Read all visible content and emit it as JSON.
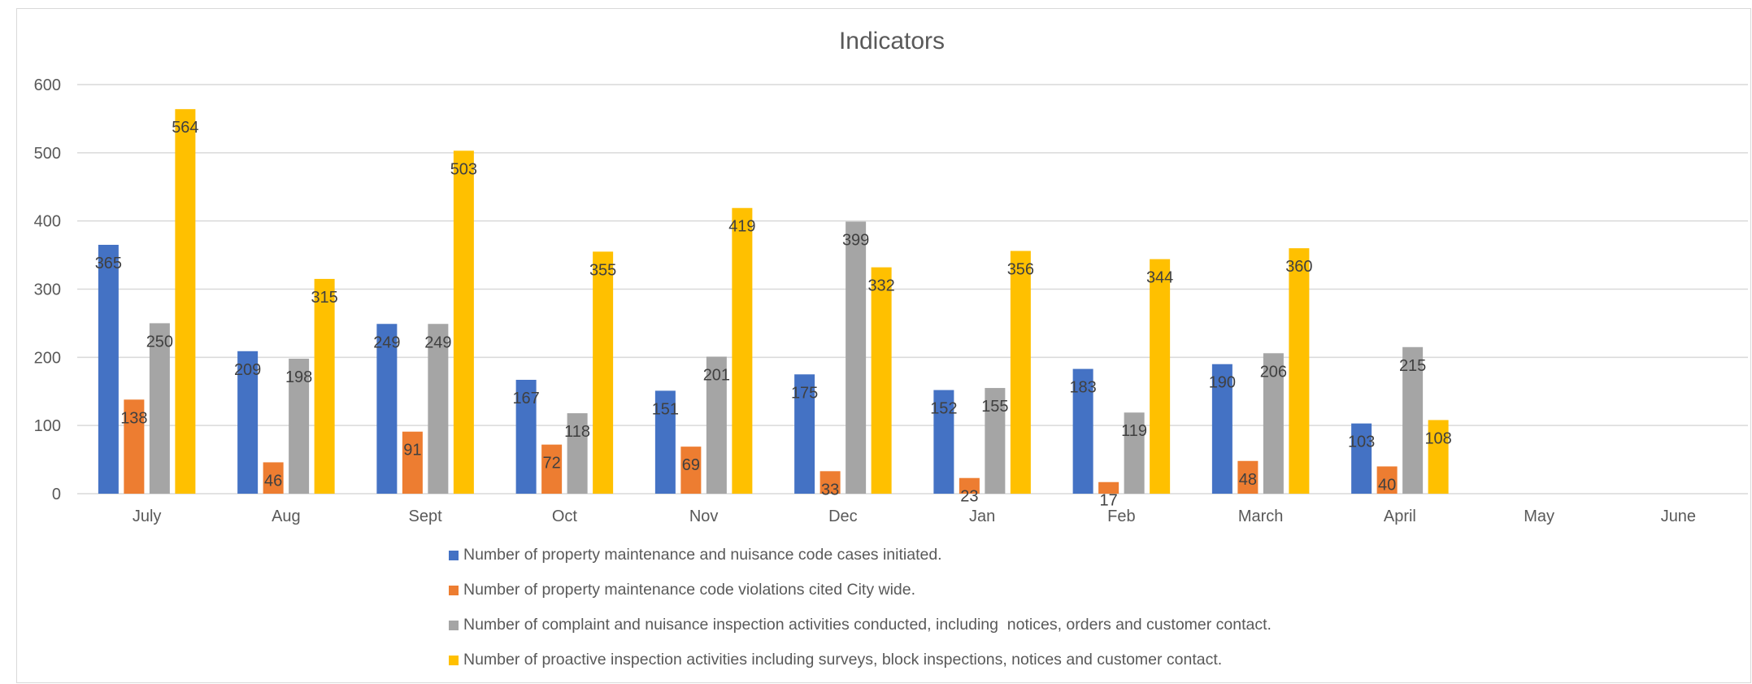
{
  "chart_data": {
    "type": "bar",
    "title": "Indicators",
    "xlabel": "",
    "ylabel": "",
    "ylim": [
      0,
      600
    ],
    "yticks": [
      0,
      100,
      200,
      300,
      400,
      500,
      600
    ],
    "grid": true,
    "legend_position": "bottom",
    "categories": [
      "July",
      "Aug",
      "Sept",
      "Oct",
      "Nov",
      "Dec",
      "Jan",
      "Feb",
      "March",
      "April",
      "May",
      "June"
    ],
    "series": [
      {
        "name": "Number of property maintenance and nuisance code cases initiated.",
        "color": "#4472C4",
        "values": [
          365,
          209,
          249,
          167,
          151,
          175,
          152,
          183,
          190,
          103,
          null,
          null
        ]
      },
      {
        "name": "Number of property maintenance code violations cited City wide.",
        "color": "#ED7D31",
        "values": [
          138,
          46,
          91,
          72,
          69,
          33,
          23,
          17,
          48,
          40,
          null,
          null
        ]
      },
      {
        "name": "Number of complaint and nuisance inspection activities conducted, including  notices, orders and customer contact.",
        "color": "#A5A5A5",
        "values": [
          250,
          198,
          249,
          118,
          201,
          399,
          155,
          119,
          206,
          215,
          null,
          null
        ]
      },
      {
        "name": "Number of proactive inspection activities including surveys, block inspections, notices and customer contact.",
        "color": "#FFC000",
        "values": [
          564,
          315,
          503,
          355,
          419,
          332,
          356,
          344,
          360,
          108,
          null,
          null
        ]
      }
    ]
  }
}
